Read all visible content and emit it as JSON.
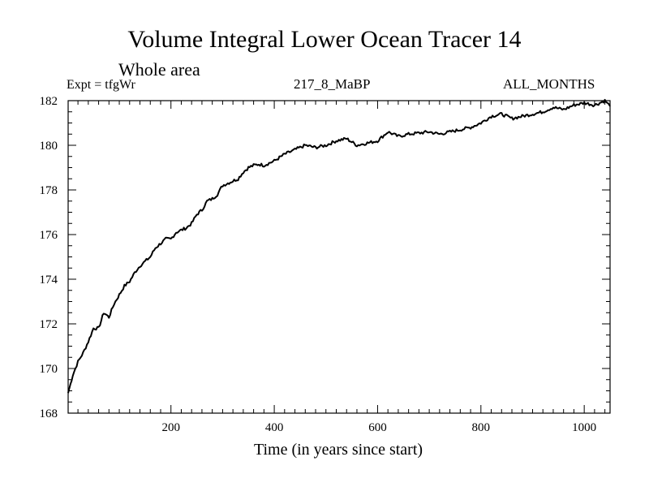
{
  "chart_data": {
    "type": "line",
    "title": "Volume Integral Lower Ocean Tracer 14",
    "subtitle": "Whole area",
    "experiment_label": "Expt = tfgWr",
    "run_label": "217_8_MaBP",
    "period_label": "ALL_MONTHS",
    "xlabel": "Time (in years since start)",
    "ylabel": "",
    "xlim": [
      1,
      1050
    ],
    "ylim": [
      168,
      182
    ],
    "xticks": [
      200,
      400,
      600,
      800,
      1000
    ],
    "yticks": [
      168,
      170,
      172,
      174,
      176,
      178,
      180,
      182
    ],
    "grid": false,
    "series": [
      {
        "name": "Lower Ocean Tracer 14",
        "x": [
          1,
          10,
          20,
          30,
          40,
          50,
          60,
          70,
          80,
          90,
          100,
          110,
          120,
          130,
          140,
          150,
          160,
          170,
          180,
          190,
          200,
          210,
          220,
          230,
          240,
          250,
          260,
          270,
          280,
          290,
          300,
          310,
          320,
          330,
          340,
          350,
          360,
          370,
          380,
          390,
          400,
          420,
          440,
          460,
          480,
          500,
          520,
          540,
          560,
          580,
          600,
          620,
          640,
          660,
          680,
          700,
          720,
          740,
          760,
          780,
          800,
          820,
          840,
          860,
          880,
          900,
          920,
          940,
          960,
          980,
          1000,
          1020,
          1040,
          1050
        ],
        "y": [
          168.9,
          169.7,
          170.3,
          170.7,
          171.2,
          171.8,
          171.8,
          172.5,
          172.3,
          172.9,
          173.3,
          173.7,
          173.9,
          174.3,
          174.6,
          174.8,
          175.0,
          175.4,
          175.6,
          175.8,
          175.8,
          176.1,
          176.2,
          176.3,
          176.5,
          176.9,
          177.1,
          177.5,
          177.6,
          177.8,
          178.2,
          178.3,
          178.4,
          178.5,
          178.8,
          179.0,
          179.1,
          179.15,
          179.1,
          179.2,
          179.3,
          179.6,
          179.8,
          180.0,
          179.9,
          180.0,
          180.2,
          180.3,
          180.0,
          180.1,
          180.2,
          180.6,
          180.4,
          180.5,
          180.55,
          180.6,
          180.5,
          180.6,
          180.7,
          180.8,
          181.0,
          181.3,
          181.4,
          181.2,
          181.3,
          181.4,
          181.5,
          181.7,
          181.6,
          181.8,
          181.9,
          181.8,
          182.0,
          181.75
        ]
      }
    ]
  }
}
